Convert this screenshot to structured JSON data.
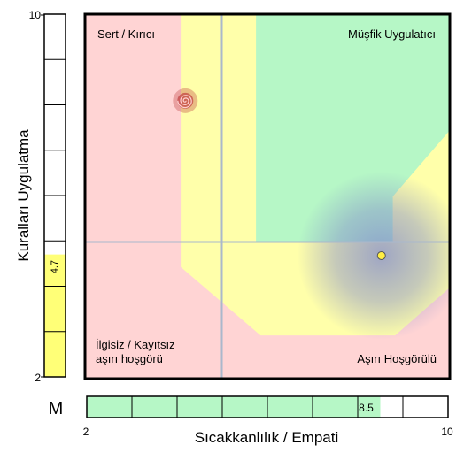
{
  "chart_data": {
    "type": "scatter",
    "xlabel": "Sıcakkanlılık / Empati",
    "ylabel": "Kuralları Uygulatma",
    "xlim": [
      2,
      10
    ],
    "ylim": [
      2,
      10
    ],
    "x_tick_labels": [
      "2",
      "10"
    ],
    "y_tick_labels": [
      "2",
      "10"
    ],
    "quadrant_labels": {
      "top_left": "Sert / Kırıcı",
      "top_right": "Müşfik Uygulatıcı",
      "bottom_left_line1": "İlgisiz / Kayıtsız",
      "bottom_left_line2": "aşırı hoşgörü",
      "bottom_right": "Aşırı Hoşgörülü"
    },
    "x_gauge": {
      "value": 8.5,
      "label": "8.5",
      "fill_color": "#b6f7c6"
    },
    "y_gauge": {
      "value": 4.7,
      "label": "4.7",
      "fill_color": "#ffff77"
    },
    "corner_label": "M",
    "points": [
      {
        "x": 8.5,
        "y": 4.7,
        "marker": "yellow-dot",
        "color": "#ffee44"
      },
      {
        "x": 4.2,
        "y": 8.1,
        "marker": "red-spiral",
        "color": "#c04040"
      }
    ],
    "divider_lines": {
      "x": 5,
      "y": 5
    },
    "colors": {
      "pink": "#ffd4d4",
      "yellow": "#ffffaa",
      "green": "#b6f7c6",
      "cloud": "#7f88cc"
    },
    "grid": false
  }
}
